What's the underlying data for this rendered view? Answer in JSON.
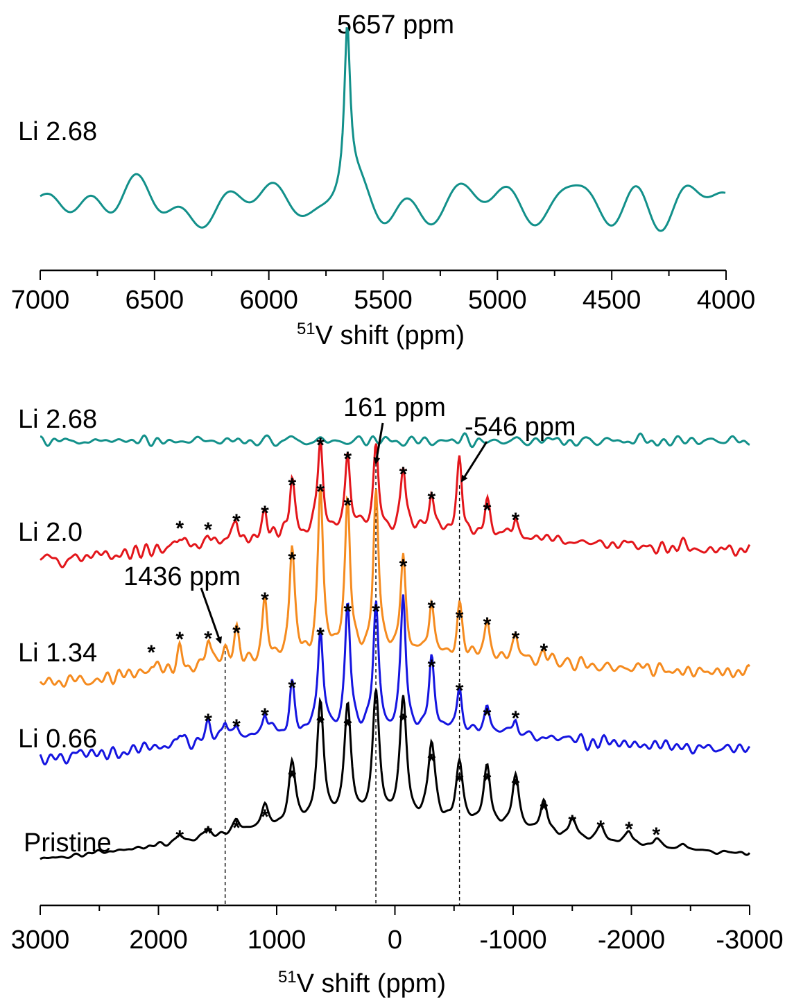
{
  "colors": {
    "teal": "#12908a",
    "red": "#e3161b",
    "orange": "#f58b1f",
    "blue": "#1515e0",
    "black": "#000000"
  },
  "chart_data": [
    {
      "type": "line",
      "xlabel_sup": "51",
      "xlabel": "V shift (ppm)",
      "xlim": [
        7000,
        4000
      ],
      "xticks": [
        "7000",
        "6500",
        "6000",
        "5500",
        "5000",
        "4500",
        "4000"
      ],
      "series": [
        {
          "name": "Li 2.68",
          "color": "#12908a",
          "peak_ppm": 5657
        }
      ],
      "annotations": [
        {
          "text": "5657 ppm",
          "x": 5657
        }
      ]
    },
    {
      "type": "line",
      "xlabel_sup": "51",
      "xlabel": "V shift (ppm)",
      "xlim": [
        3000,
        -3000
      ],
      "xticks": [
        "3000",
        "2000",
        "1000",
        "0",
        "-1000",
        "-2000",
        "-3000"
      ],
      "series": [
        {
          "name": "Li 2.68",
          "color": "#12908a",
          "peaks": []
        },
        {
          "name": "Li 2.0",
          "color": "#e3161b",
          "peaks": [
            1820,
            1580,
            1340,
            1100,
            870,
            630,
            400,
            161,
            -70,
            -310,
            -546,
            -780,
            -1020
          ]
        },
        {
          "name": "Li 1.34",
          "color": "#f58b1f",
          "peaks": [
            2060,
            1820,
            1580,
            1436,
            1340,
            1100,
            870,
            630,
            400,
            161,
            -70,
            -310,
            -546,
            -780,
            -1020,
            -1260
          ]
        },
        {
          "name": "Li 0.66",
          "color": "#1515e0",
          "peaks": [
            1820,
            1580,
            1436,
            1340,
            1100,
            870,
            630,
            400,
            161,
            -70,
            -310,
            -546,
            -780,
            -1020
          ]
        },
        {
          "name": "Pristine",
          "color": "#000000",
          "peaks": [
            1820,
            1580,
            1340,
            1100,
            870,
            630,
            400,
            161,
            -70,
            -310,
            -546,
            -780,
            -1020,
            -1260,
            -1500,
            -1740,
            -1980,
            -2210,
            -2440
          ]
        }
      ],
      "annotations": [
        {
          "text": "161 ppm",
          "x": 161
        },
        {
          "text": "-546 ppm",
          "x": -546
        },
        {
          "text": "1436 ppm",
          "x": 1436
        }
      ],
      "reference_lines": [
        1436,
        161,
        -546
      ],
      "star_marker": "*"
    }
  ]
}
